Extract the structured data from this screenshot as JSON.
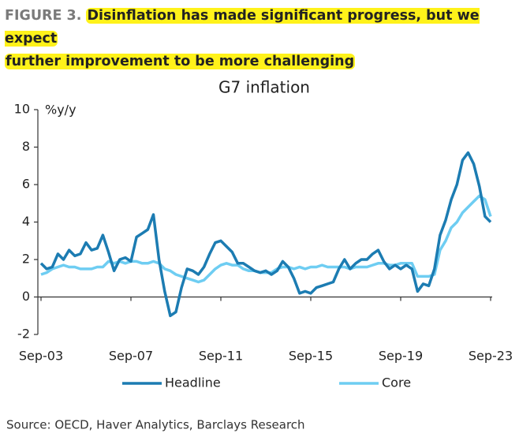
{
  "header": {
    "figure_label": "FIGURE 3.",
    "title_lines": [
      "Disinflation has made significant progress, but we expect",
      "further improvement to be more challenging"
    ]
  },
  "chart_data": {
    "type": "line",
    "title": "G7 inflation",
    "y_unit_label": "%y/y",
    "categories": [
      "Sep-03",
      null,
      null,
      null,
      null,
      null,
      null,
      null,
      null,
      null,
      null,
      null,
      null,
      null,
      null,
      null,
      "Sep-07",
      null,
      null,
      null,
      null,
      null,
      null,
      null,
      null,
      null,
      null,
      null,
      null,
      null,
      null,
      null,
      "Sep-11",
      null,
      null,
      null,
      null,
      null,
      null,
      null,
      null,
      null,
      null,
      null,
      null,
      null,
      null,
      null,
      "Sep-15",
      null,
      null,
      null,
      null,
      null,
      null,
      null,
      null,
      null,
      null,
      null,
      null,
      null,
      null,
      null,
      "Sep-19",
      null,
      null,
      null,
      null,
      null,
      null,
      null,
      null,
      null,
      null,
      null,
      null,
      null,
      null,
      null,
      "Sep-23"
    ],
    "series": [
      {
        "name": "Headline",
        "color": "#1c7cb2",
        "values": [
          1.8,
          1.5,
          1.6,
          2.3,
          2.0,
          2.5,
          2.2,
          2.3,
          2.9,
          2.5,
          2.6,
          3.3,
          2.4,
          1.4,
          2.0,
          2.1,
          1.9,
          3.2,
          3.4,
          3.6,
          4.4,
          2.0,
          0.3,
          -1.0,
          -0.8,
          0.5,
          1.5,
          1.4,
          1.2,
          1.6,
          2.3,
          2.9,
          3.0,
          2.7,
          2.4,
          1.8,
          1.8,
          1.6,
          1.4,
          1.3,
          1.4,
          1.2,
          1.4,
          1.9,
          1.6,
          1.0,
          0.2,
          0.3,
          0.2,
          0.5,
          0.6,
          0.7,
          0.8,
          1.5,
          2.0,
          1.5,
          1.8,
          2.0,
          2.0,
          2.3,
          2.5,
          1.9,
          1.5,
          1.7,
          1.5,
          1.7,
          1.5,
          0.3,
          0.7,
          0.6,
          1.5,
          3.3,
          4.1,
          5.2,
          6.0,
          7.3,
          7.7,
          7.1,
          5.9,
          4.3,
          4.0
        ]
      },
      {
        "name": "Core",
        "color": "#6ecdf2",
        "values": [
          1.2,
          1.3,
          1.5,
          1.6,
          1.7,
          1.6,
          1.6,
          1.5,
          1.5,
          1.5,
          1.6,
          1.6,
          1.9,
          1.8,
          1.9,
          1.8,
          1.9,
          1.9,
          1.8,
          1.8,
          1.9,
          1.8,
          1.5,
          1.4,
          1.2,
          1.1,
          1.0,
          0.9,
          0.8,
          0.9,
          1.2,
          1.5,
          1.7,
          1.8,
          1.7,
          1.7,
          1.5,
          1.4,
          1.4,
          1.3,
          1.3,
          1.3,
          1.5,
          1.6,
          1.6,
          1.5,
          1.6,
          1.5,
          1.6,
          1.6,
          1.7,
          1.6,
          1.6,
          1.6,
          1.6,
          1.5,
          1.6,
          1.6,
          1.6,
          1.7,
          1.8,
          1.8,
          1.7,
          1.7,
          1.8,
          1.8,
          1.8,
          1.1,
          1.1,
          1.1,
          1.2,
          2.5,
          3.0,
          3.7,
          4.0,
          4.5,
          4.8,
          5.1,
          5.4,
          5.2,
          4.3
        ]
      }
    ],
    "ylim": [
      -2,
      10
    ],
    "yticks": [
      -2,
      0,
      2,
      4,
      6,
      8,
      10
    ],
    "grid": false,
    "legend": "bottom",
    "source": "Source: OECD, Haver Analytics, Barclays Research"
  }
}
